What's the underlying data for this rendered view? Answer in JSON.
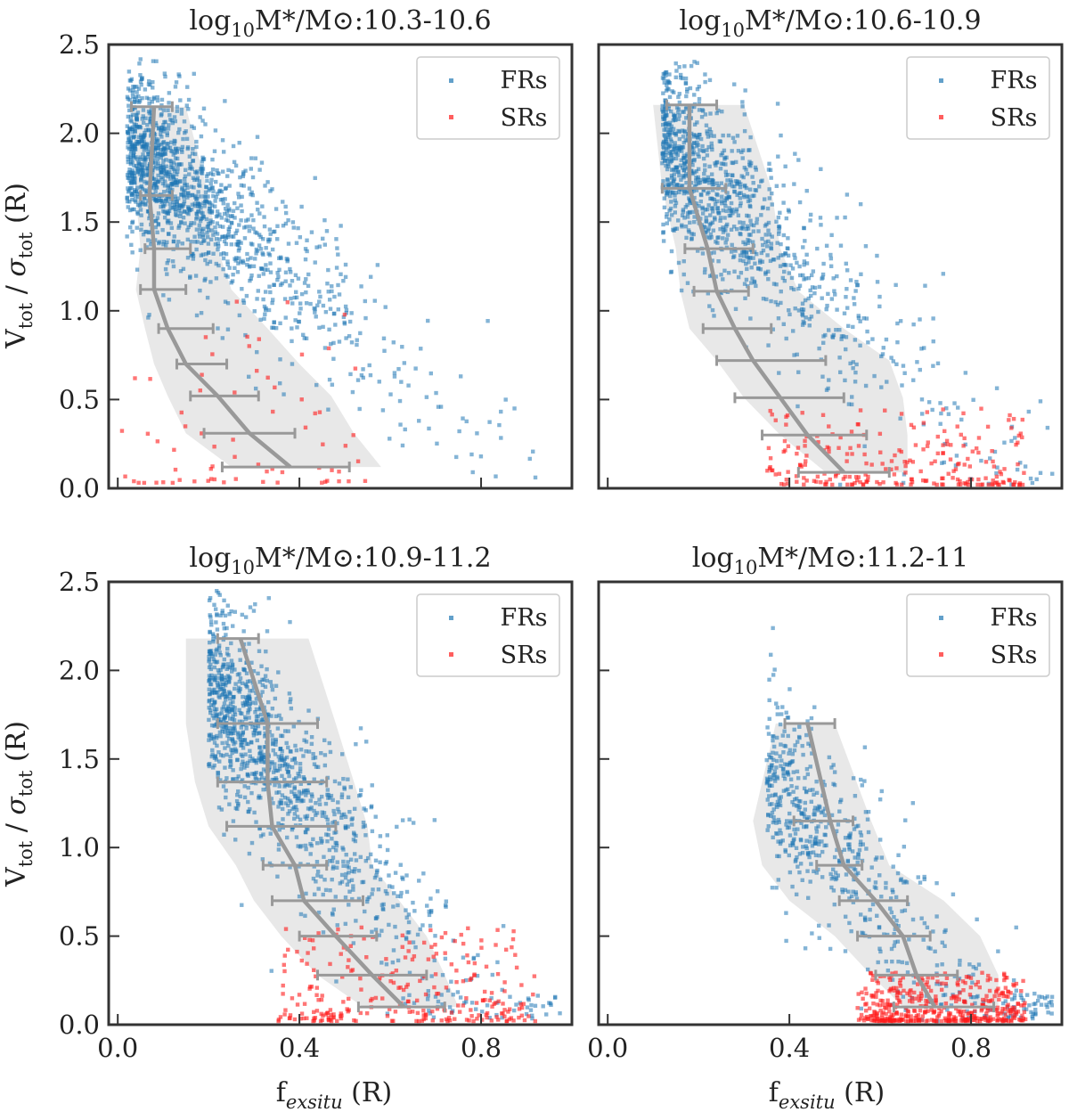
{
  "figure": {
    "shared_ylabel": "V_tot / σ_tot (R)",
    "shared_xlabel": "f_exsitu (R)",
    "xlabel_main": "f",
    "xlabel_sub": "exsitu",
    "xlabel_tail": " (R)",
    "ylabel_v": "V",
    "ylabel_tot": "tot",
    "ylabel_sep": " / ",
    "ylabel_sigma": "σ",
    "ylabel_tail": " (R)"
  },
  "colors": {
    "frs": "#1f77b4",
    "srs": "#ff1a1a",
    "median_line": "#999999",
    "band": "#e6e6e6",
    "axes": "#333333"
  },
  "legend": {
    "fr_label": "FRs",
    "sr_label": "SRs"
  },
  "chart_data": [
    {
      "type": "scatter",
      "title": "log10M*/M⊙:10.3-10.6",
      "title_log": "log",
      "title_sub": "10",
      "title_rest": "M*/M⊙:10.3-10.6",
      "xlim": [
        -0.02,
        1.0
      ],
      "ylim": [
        0.0,
        2.5
      ],
      "xticks": [
        "0.0",
        "0.4",
        "0.8"
      ],
      "yticks": [
        "0.0",
        "0.5",
        "1.0",
        "1.5",
        "2.0",
        "2.5"
      ],
      "legend": [
        "FRs",
        "SRs"
      ],
      "median": {
        "x": [
          0.08,
          0.07,
          0.08,
          0.08,
          0.11,
          0.15,
          0.22,
          0.29,
          0.38
        ],
        "y": [
          2.15,
          1.65,
          1.35,
          1.12,
          0.9,
          0.7,
          0.52,
          0.31,
          0.12
        ],
        "xerr_lo": [
          0.03,
          0.05,
          0.06,
          0.05,
          0.09,
          0.13,
          0.16,
          0.19,
          0.23
        ],
        "xerr_hi": [
          0.12,
          0.12,
          0.16,
          0.15,
          0.21,
          0.24,
          0.31,
          0.39,
          0.51
        ]
      },
      "band": {
        "lower_x": [
          0.03,
          0.04,
          0.05,
          0.04,
          0.06,
          0.08,
          0.11,
          0.15,
          0.25
        ],
        "upper_x": [
          0.15,
          0.2,
          0.22,
          0.25,
          0.33,
          0.4,
          0.47,
          0.52,
          0.58
        ],
        "y": [
          2.15,
          1.65,
          1.35,
          1.12,
          0.9,
          0.7,
          0.52,
          0.31,
          0.12
        ]
      },
      "fr_cloud": {
        "count": 1350,
        "x0": 0.02,
        "x_scale": 0.17,
        "slope": 2.1,
        "y0": 1.95,
        "ymin": 0.02,
        "ymax": 2.45,
        "spread": 0.26
      },
      "sr_cloud": {
        "count": 70,
        "xmin": 0.0,
        "xmax": 0.55,
        "ymin": 0.03,
        "ymax": 1.1
      }
    },
    {
      "type": "scatter",
      "title": "log10M*/M⊙:10.6-10.9",
      "title_log": "log",
      "title_sub": "10",
      "title_rest": "M*/M⊙:10.6-10.9",
      "xlim": [
        -0.02,
        1.0
      ],
      "ylim": [
        0.0,
        2.5
      ],
      "xticks": [
        "0.0",
        "0.4",
        "0.8"
      ],
      "yticks": [
        "0.0",
        "0.5",
        "1.0",
        "1.5",
        "2.0",
        "2.5"
      ],
      "legend": [
        "FRs",
        "SRs"
      ],
      "median": {
        "x": [
          0.18,
          0.18,
          0.22,
          0.24,
          0.28,
          0.32,
          0.38,
          0.44,
          0.52
        ],
        "y": [
          2.16,
          1.69,
          1.35,
          1.11,
          0.9,
          0.72,
          0.51,
          0.3,
          0.09
        ],
        "xerr_lo": [
          0.13,
          0.12,
          0.17,
          0.19,
          0.21,
          0.24,
          0.28,
          0.34,
          0.42
        ],
        "xerr_hi": [
          0.24,
          0.26,
          0.32,
          0.31,
          0.36,
          0.48,
          0.52,
          0.57,
          0.62
        ]
      },
      "band": {
        "lower_x": [
          0.1,
          0.12,
          0.15,
          0.16,
          0.18,
          0.24,
          0.3,
          0.38,
          0.48
        ],
        "upper_x": [
          0.3,
          0.36,
          0.38,
          0.42,
          0.52,
          0.62,
          0.65,
          0.66,
          0.66
        ],
        "y": [
          2.16,
          1.69,
          1.35,
          1.11,
          0.9,
          0.72,
          0.51,
          0.3,
          0.09
        ]
      },
      "fr_cloud": {
        "count": 1100,
        "x0": 0.12,
        "x_scale": 0.18,
        "slope": 2.4,
        "y0": 1.95,
        "ymin": 0.02,
        "ymax": 2.42,
        "spread": 0.28
      },
      "sr_cloud": {
        "count": 230,
        "xmin": 0.35,
        "xmax": 0.92,
        "ymin": 0.02,
        "ymax": 0.45
      }
    },
    {
      "type": "scatter",
      "title": "log10M*/M⊙:10.9-11.2",
      "title_log": "log",
      "title_sub": "10",
      "title_rest": "M*/M⊙:10.9-11.2",
      "xlim": [
        -0.02,
        1.0
      ],
      "ylim": [
        0.0,
        2.5
      ],
      "xticks": [
        "0.0",
        "0.4",
        "0.8"
      ],
      "yticks": [
        "0.0",
        "0.5",
        "1.0",
        "1.5",
        "2.0",
        "2.5"
      ],
      "legend": [
        "FRs",
        "SRs"
      ],
      "median": {
        "x": [
          0.27,
          0.33,
          0.33,
          0.34,
          0.39,
          0.41,
          0.48,
          0.56,
          0.63
        ],
        "y": [
          2.18,
          1.7,
          1.37,
          1.12,
          0.9,
          0.7,
          0.5,
          0.28,
          0.1
        ],
        "xerr_lo": [
          0.22,
          0.22,
          0.22,
          0.24,
          0.32,
          0.34,
          0.4,
          0.44,
          0.53
        ],
        "xerr_hi": [
          0.31,
          0.44,
          0.46,
          0.48,
          0.46,
          0.54,
          0.57,
          0.68,
          0.72
        ]
      },
      "band": {
        "lower_x": [
          0.15,
          0.15,
          0.17,
          0.2,
          0.26,
          0.3,
          0.36,
          0.44,
          0.54
        ],
        "upper_x": [
          0.42,
          0.48,
          0.52,
          0.55,
          0.56,
          0.62,
          0.68,
          0.72,
          0.75
        ],
        "y": [
          2.18,
          1.7,
          1.37,
          1.12,
          0.9,
          0.7,
          0.5,
          0.28,
          0.1
        ]
      },
      "fr_cloud": {
        "count": 1150,
        "x0": 0.2,
        "x_scale": 0.18,
        "slope": 3.1,
        "y0": 1.95,
        "ymin": 0.02,
        "ymax": 2.45,
        "spread": 0.3
      },
      "sr_cloud": {
        "count": 260,
        "xmin": 0.35,
        "xmax": 0.92,
        "ymin": 0.02,
        "ymax": 0.55
      }
    },
    {
      "type": "scatter",
      "title": "log10M*/M⊙:11.2-11",
      "title_log": "log",
      "title_sub": "10",
      "title_rest": "M*/M⊙:11.2-11",
      "xlim": [
        -0.02,
        1.0
      ],
      "ylim": [
        0.0,
        2.5
      ],
      "xticks": [
        "0.0",
        "0.4",
        "0.8"
      ],
      "yticks": [
        "0.0",
        "0.5",
        "1.0",
        "1.5",
        "2.0",
        "2.5"
      ],
      "legend": [
        "FRs",
        "SRs"
      ],
      "median": {
        "x": [
          0.44,
          0.49,
          0.52,
          0.59,
          0.65,
          0.68,
          0.72
        ],
        "y": [
          1.7,
          1.15,
          0.9,
          0.7,
          0.5,
          0.28,
          0.1
        ],
        "xerr_lo": [
          0.39,
          0.41,
          0.46,
          0.51,
          0.55,
          0.59,
          0.63
        ],
        "xerr_hi": [
          0.5,
          0.54,
          0.56,
          0.66,
          0.71,
          0.77,
          0.85
        ]
      },
      "band": {
        "lower_x": [
          0.37,
          0.32,
          0.34,
          0.4,
          0.5,
          0.58,
          0.65
        ],
        "upper_x": [
          0.5,
          0.58,
          0.62,
          0.74,
          0.82,
          0.86,
          0.86
        ],
        "y": [
          1.7,
          1.15,
          0.9,
          0.7,
          0.5,
          0.28,
          0.1
        ]
      },
      "fr_cloud": {
        "count": 600,
        "x0": 0.35,
        "x_scale": 0.19,
        "slope": 2.9,
        "y0": 1.45,
        "ymin": 0.02,
        "ymax": 2.38,
        "spread": 0.28
      },
      "sr_cloud": {
        "count": 420,
        "xmin": 0.55,
        "xmax": 0.92,
        "ymin": 0.02,
        "ymax": 0.3
      }
    }
  ]
}
